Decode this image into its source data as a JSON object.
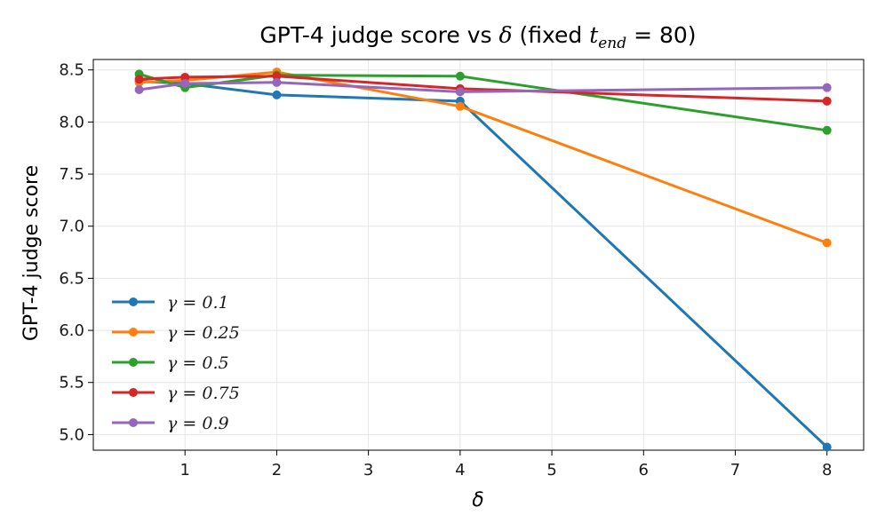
{
  "chart_data": {
    "type": "line",
    "title": {
      "prefix": "GPT-4 judge score vs ",
      "delta": "δ",
      "mid": " (fixed ",
      "t": "t",
      "sub": "end",
      "suffix": " = 80)"
    },
    "xlabel": "δ",
    "ylabel": "GPT-4 judge score",
    "xlim": [
      0.0,
      8.4
    ],
    "ylim": [
      4.85,
      8.6
    ],
    "x_ticks": [
      1,
      2,
      3,
      4,
      5,
      6,
      7,
      8
    ],
    "y_ticks": [
      5.0,
      5.5,
      6.0,
      6.5,
      7.0,
      7.5,
      8.0,
      8.5
    ],
    "x_tick_labels": [
      "1",
      "2",
      "3",
      "4",
      "5",
      "6",
      "7",
      "8"
    ],
    "y_tick_labels": [
      "5.0",
      "5.5",
      "6.0",
      "6.5",
      "7.0",
      "7.5",
      "8.0",
      "8.5"
    ],
    "x": [
      0.5,
      1,
      2,
      4,
      8
    ],
    "grid": true,
    "legend_position": "lower-left",
    "series": [
      {
        "name": "γ = 0.1",
        "color": "#1f77b4",
        "values": [
          8.39,
          8.37,
          8.26,
          8.2,
          4.88
        ]
      },
      {
        "name": "γ = 0.25",
        "color": "#ff7f0e",
        "values": [
          8.38,
          8.4,
          8.48,
          8.15,
          6.84
        ]
      },
      {
        "name": "γ = 0.5",
        "color": "#2ca02c",
        "values": [
          8.46,
          8.33,
          8.45,
          8.44,
          7.92
        ]
      },
      {
        "name": "γ = 0.75",
        "color": "#d62728",
        "values": [
          8.41,
          8.43,
          8.44,
          8.32,
          8.2
        ]
      },
      {
        "name": "γ = 0.9",
        "color": "#9467bd",
        "values": [
          8.31,
          8.37,
          8.38,
          8.29,
          8.33
        ]
      }
    ]
  }
}
